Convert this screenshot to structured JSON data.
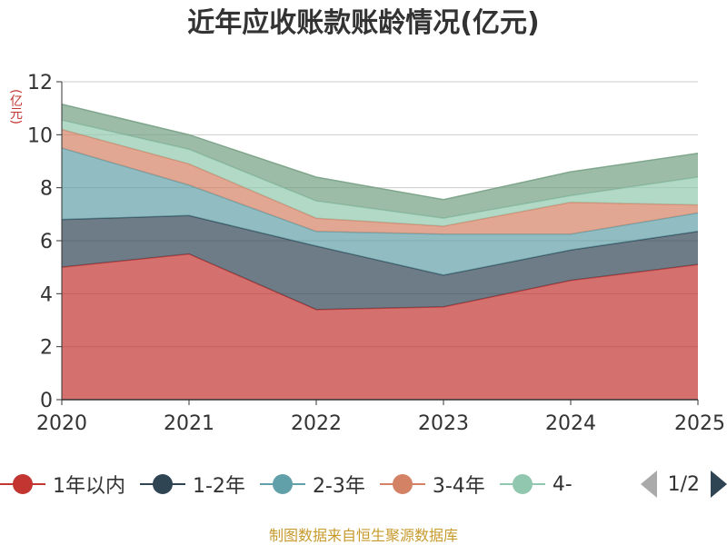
{
  "title": "近年应收账款账龄情况(亿元)",
  "y_unit": "(亿元)",
  "footer": "制图数据来自恒生聚源数据库",
  "pager": {
    "text": "1/2"
  },
  "legend": [
    {
      "name": "1年以内",
      "color": "#c23531"
    },
    {
      "name": "1-2年",
      "color": "#2f4554"
    },
    {
      "name": "2-3年",
      "color": "#61a0a8"
    },
    {
      "name": "3-4年",
      "color": "#d48265"
    },
    {
      "name": "4-",
      "color": "#91c7ae"
    }
  ],
  "chart_data": {
    "type": "area",
    "stacked": true,
    "title": "近年应收账款账龄情况(亿元)",
    "ylabel": "(亿元)",
    "categories": [
      "2020",
      "2021",
      "2022",
      "2023",
      "2024",
      "2025"
    ],
    "ylim": [
      0,
      12
    ],
    "yticks": [
      0,
      2,
      4,
      6,
      8,
      10,
      12
    ],
    "grid": true,
    "legend_position": "bottom",
    "series": [
      {
        "name": "1年以内",
        "color": "#c23531",
        "values": [
          5.0,
          5.5,
          3.4,
          3.5,
          4.5,
          5.1
        ]
      },
      {
        "name": "1-2年",
        "color": "#2f4554",
        "values": [
          1.8,
          1.45,
          2.4,
          1.2,
          1.15,
          1.25
        ]
      },
      {
        "name": "2-3年",
        "color": "#61a0a8",
        "values": [
          2.7,
          1.15,
          0.55,
          1.55,
          0.6,
          0.7
        ]
      },
      {
        "name": "3-4年",
        "color": "#d48265",
        "values": [
          0.7,
          0.8,
          0.5,
          0.3,
          1.2,
          0.3
        ]
      },
      {
        "name": "4-",
        "color": "#91c7ae",
        "values": [
          0.35,
          0.55,
          0.65,
          0.3,
          0.25,
          1.05
        ]
      },
      {
        "name": "",
        "color": "#749f83",
        "values": [
          0.6,
          0.55,
          0.9,
          0.7,
          0.9,
          0.9
        ]
      }
    ]
  }
}
